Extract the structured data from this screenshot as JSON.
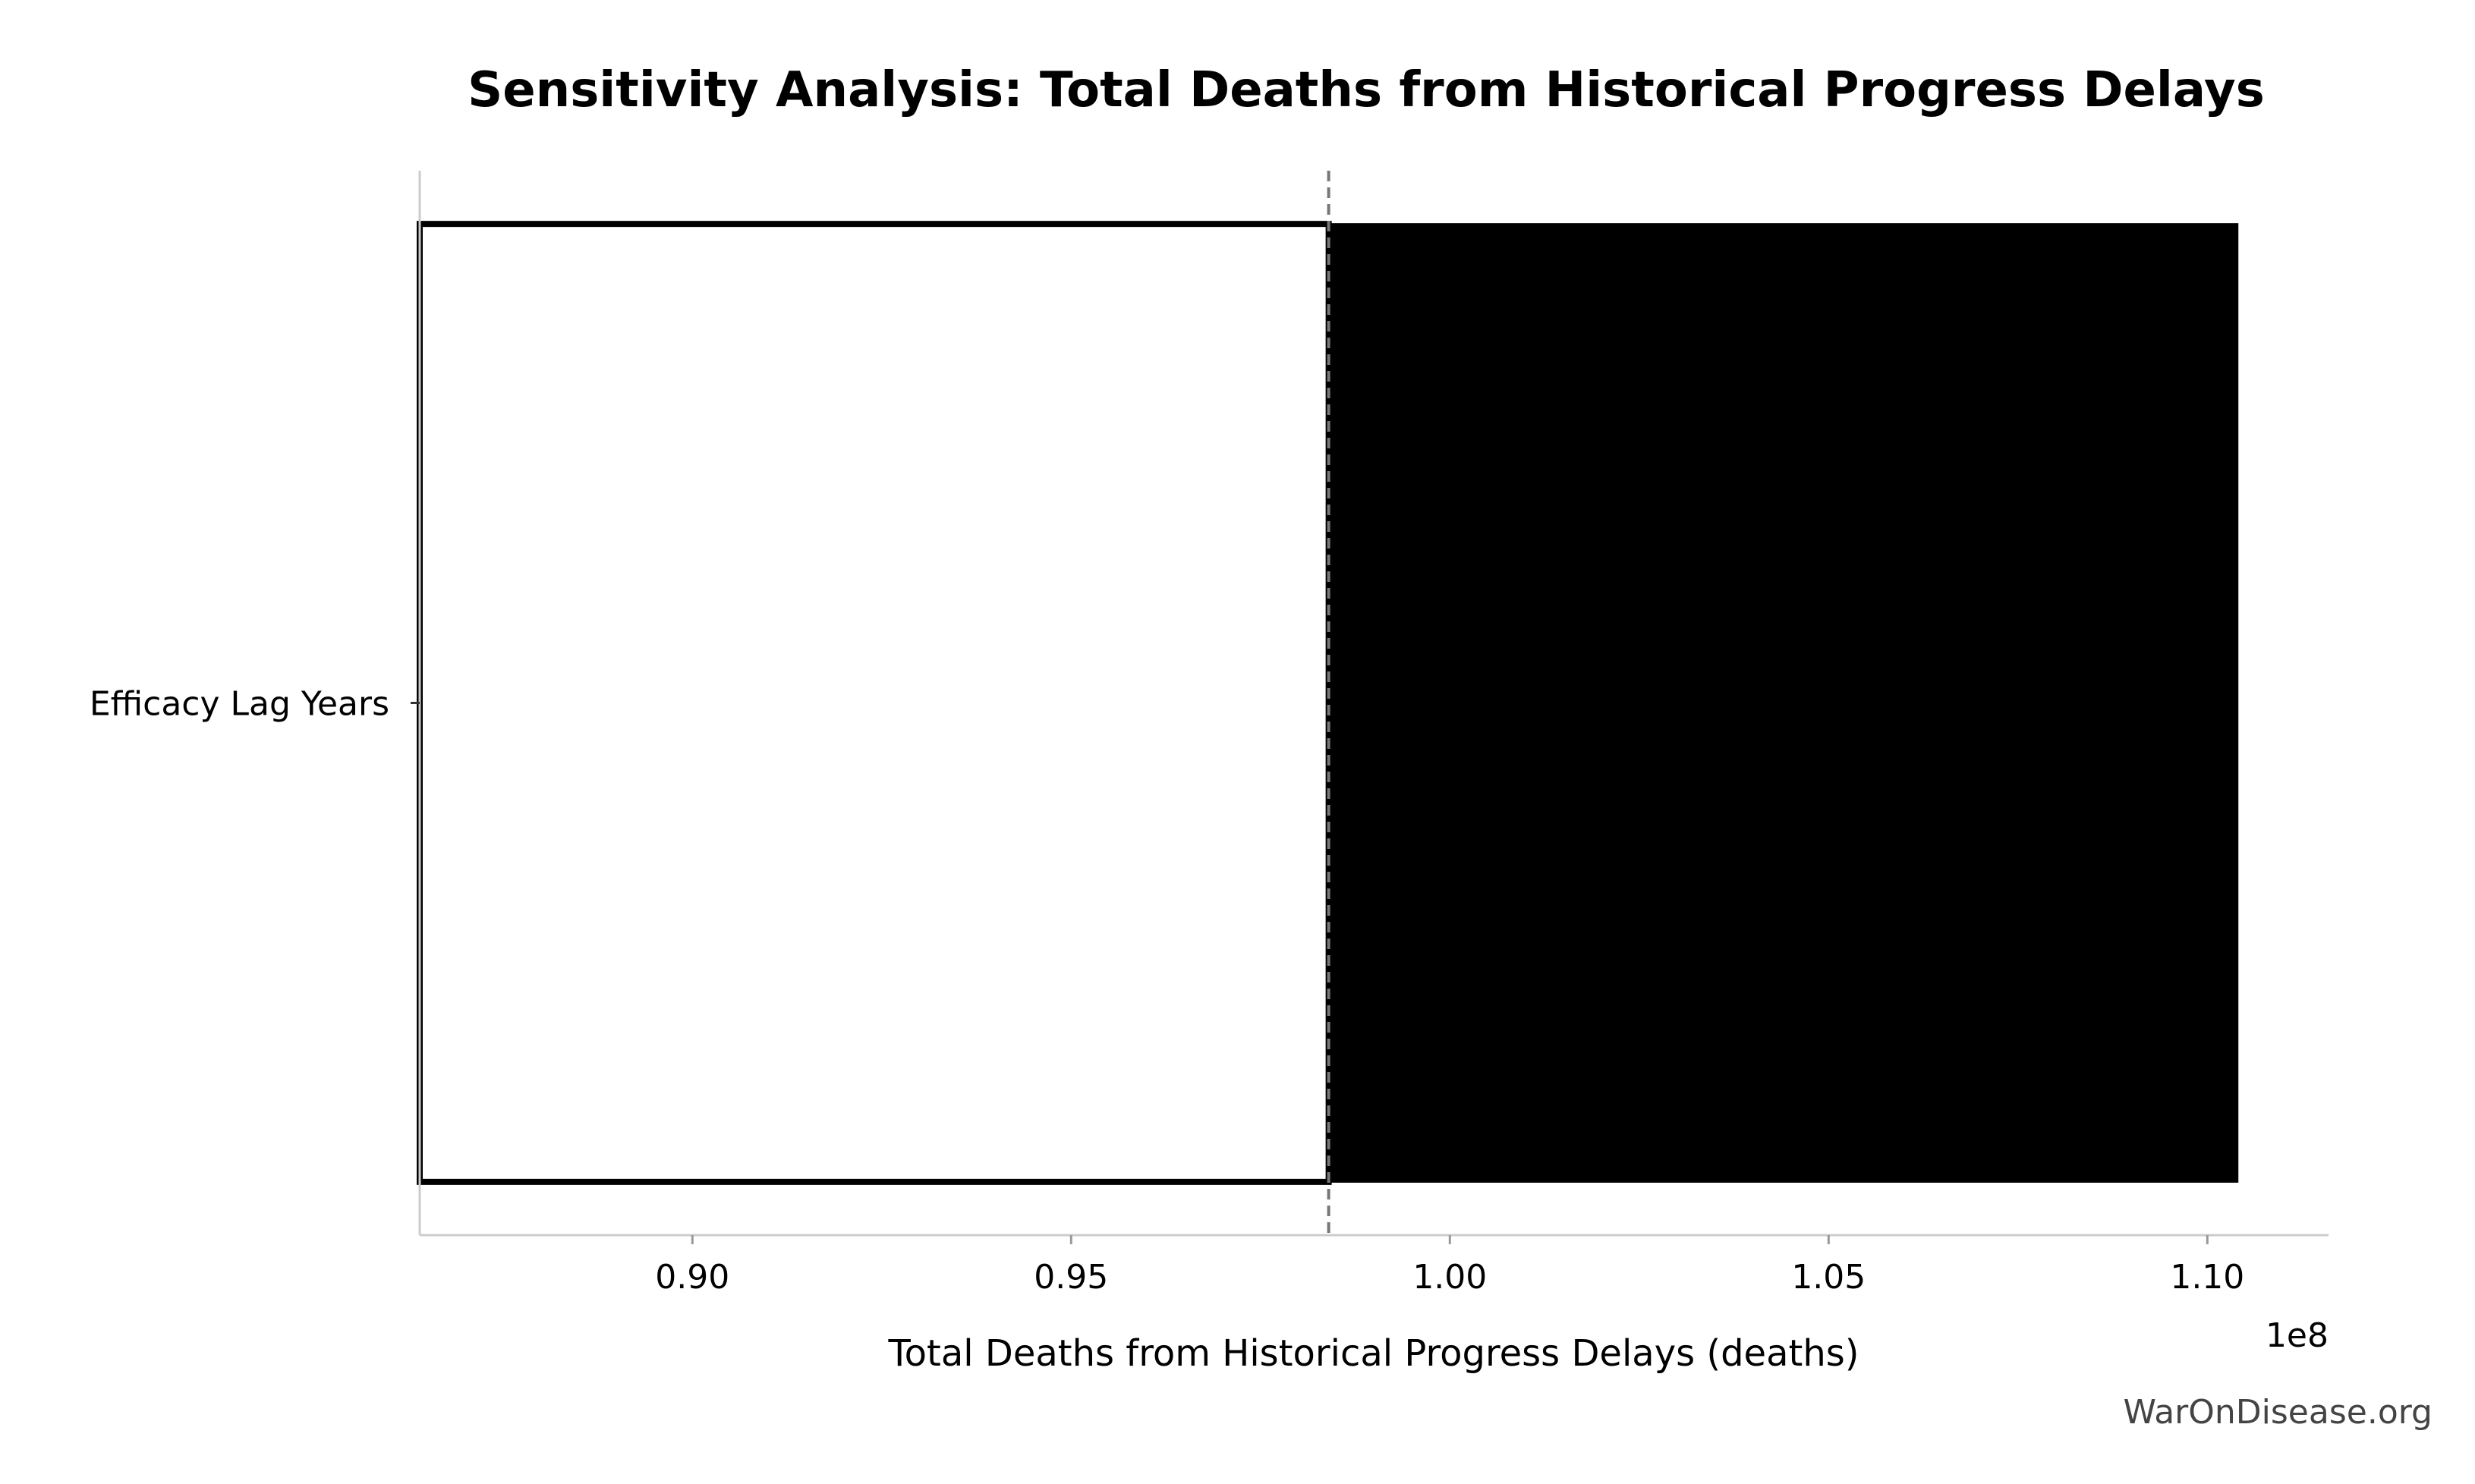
{
  "chart_data": {
    "type": "bar",
    "orientation": "horizontal",
    "variant": "tornado",
    "title": "Sensitivity Analysis: Total Deaths from Historical Progress Delays",
    "xlabel": "Total Deaths from Historical Progress Delays (deaths)",
    "ylabel": "",
    "offset_label": "1e8",
    "categories": [
      "Efficacy Lag Years"
    ],
    "baseline": 98400000,
    "low_values": [
      86400000
    ],
    "high_values": [
      110400000
    ],
    "xlim": [
      86400000,
      111600000
    ],
    "x_ticks": [
      90000000,
      95000000,
      100000000,
      105000000,
      110000000
    ],
    "x_tick_labels": [
      "0.90",
      "0.95",
      "1.00",
      "1.05",
      "1.10"
    ],
    "colors": {
      "low_bar_fill": "#ffffff",
      "low_bar_edge": "#000000",
      "high_bar_fill": "#000000",
      "baseline_line": "#777777",
      "spine": "#cccccc"
    },
    "grid": false,
    "legend": "none"
  },
  "watermark": "WarOnDisease.org"
}
